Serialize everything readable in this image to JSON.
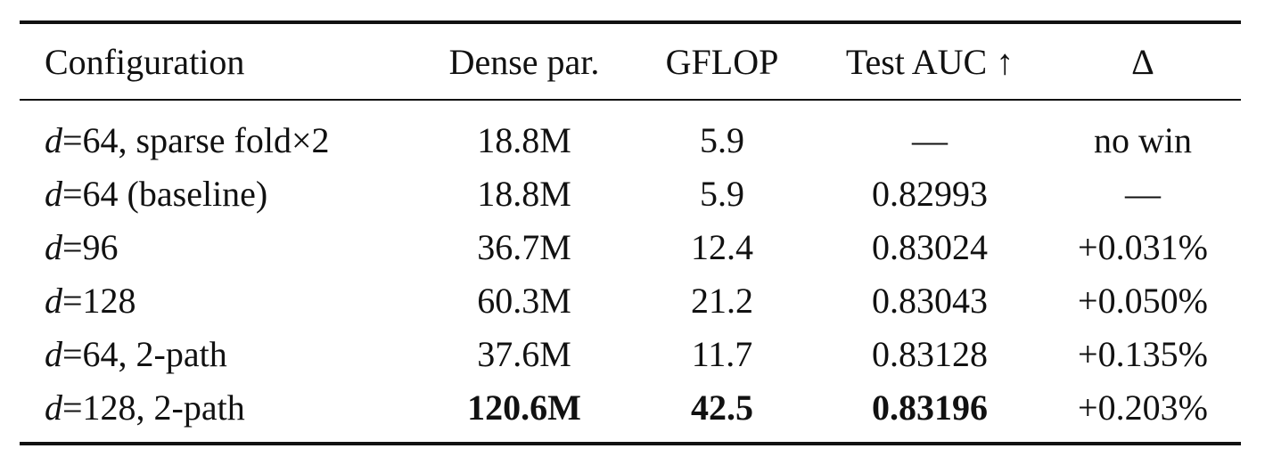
{
  "table": {
    "headers": [
      "Configuration",
      "Dense par.",
      "GFLOP",
      "Test AUC ↑",
      "Δ"
    ],
    "rows": [
      [
        "d=64, sparse fold×2",
        "18.8M",
        "5.9",
        "—",
        "no win"
      ],
      [
        "d=64 (baseline)",
        "18.8M",
        "5.9",
        "0.82993",
        "—"
      ],
      [
        "d=96",
        "36.7M",
        "12.4",
        "0.83024",
        "+0.031%"
      ],
      [
        "d=128",
        "60.3M",
        "21.2",
        "0.83043",
        "+0.050%"
      ],
      [
        "d=64, 2-path",
        "37.6M",
        "11.7",
        "0.83128",
        "+0.135%"
      ],
      [
        "d=128, 2-path",
        "120.6M",
        "42.5",
        "0.83196",
        "+0.203%"
      ]
    ]
  }
}
